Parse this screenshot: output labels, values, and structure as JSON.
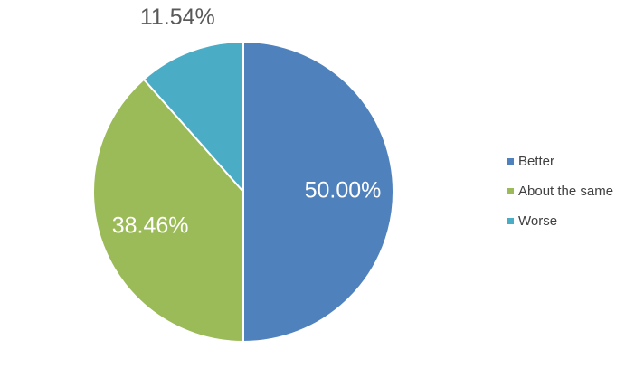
{
  "chart_data": {
    "type": "pie",
    "categories": [
      "Better",
      "About the same",
      "Worse"
    ],
    "values": [
      50,
      38.46,
      11.54
    ],
    "value_labels": [
      "50.00%",
      "38.46%",
      "11.54%"
    ],
    "colors": [
      "#4f81bd",
      "#9bbb59",
      "#4bacc6"
    ],
    "legend": "right"
  }
}
